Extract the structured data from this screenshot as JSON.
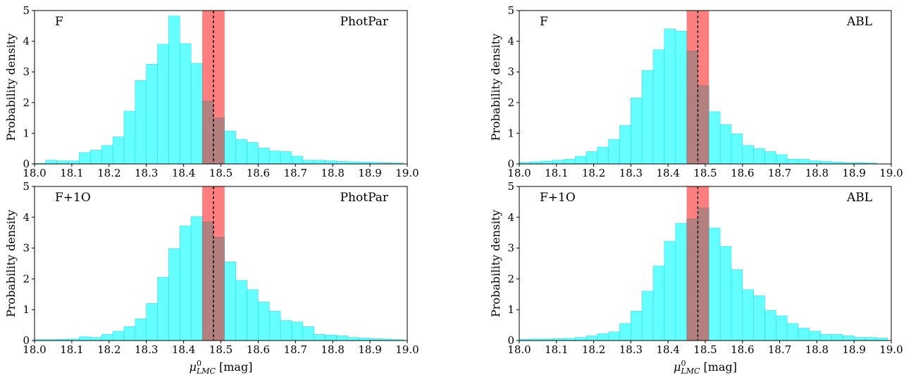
{
  "colors": {
    "hist": "#00ffff",
    "hist_edge": "#29e0f0",
    "band": "#ff0000",
    "line": "#000000"
  },
  "shared": {
    "ylabel": "Probability density",
    "xlabel_main": "μ",
    "xlabel_sup": "0",
    "xlabel_sub": "LMC",
    "xlabel_unit": " [mag]",
    "xticks": [
      "18.0",
      "18.1",
      "18.2",
      "18.3",
      "18.4",
      "18.5",
      "18.6",
      "18.7",
      "18.8",
      "18.9",
      "19.0"
    ],
    "yticks": [
      "0",
      "1",
      "2",
      "3",
      "4",
      "5"
    ]
  },
  "chart_data": [
    {
      "type": "bar",
      "panel": "top-left",
      "label_left": "F",
      "label_right": "PhotPar",
      "xlim": [
        18.0,
        19.0
      ],
      "ylim": [
        0,
        5
      ],
      "bin_start": 18.0,
      "bin_width": 0.03,
      "values": [
        0.02,
        0.12,
        0.1,
        0.1,
        0.37,
        0.45,
        0.6,
        0.88,
        1.72,
        2.72,
        3.25,
        3.9,
        4.82,
        3.92,
        3.28,
        2.05,
        1.5,
        1.07,
        0.8,
        0.7,
        0.52,
        0.42,
        0.4,
        0.25,
        0.12,
        0.12,
        0.1,
        0.08,
        0.07,
        0.06,
        0.05,
        0.04,
        0.03
      ],
      "band": [
        18.45,
        18.51
      ],
      "vline": 18.48,
      "grid": false
    },
    {
      "type": "bar",
      "panel": "top-right",
      "label_left": "F",
      "label_right": "ABL",
      "xlim": [
        18.0,
        19.0
      ],
      "ylim": [
        0,
        5
      ],
      "bin_start": 18.0,
      "bin_width": 0.03,
      "values": [
        0.05,
        0.07,
        0.09,
        0.12,
        0.15,
        0.25,
        0.4,
        0.55,
        0.8,
        1.25,
        2.15,
        3.05,
        3.72,
        4.4,
        4.33,
        3.68,
        2.55,
        1.7,
        1.28,
        0.98,
        0.6,
        0.5,
        0.4,
        0.3,
        0.15,
        0.15,
        0.1,
        0.08,
        0.06,
        0.04,
        0.04,
        0.03,
        0.0
      ],
      "band": [
        18.45,
        18.51
      ],
      "vline": 18.48,
      "grid": false
    },
    {
      "type": "bar",
      "panel": "bottom-left",
      "label_left": "F+1O",
      "label_right": "PhotPar",
      "xlim": [
        18.0,
        19.0
      ],
      "ylim": [
        0,
        5
      ],
      "bin_start": 18.0,
      "bin_width": 0.03,
      "values": [
        0.03,
        0.03,
        0.04,
        0.05,
        0.12,
        0.1,
        0.2,
        0.3,
        0.45,
        0.7,
        1.2,
        2.05,
        2.98,
        3.72,
        4.02,
        3.85,
        3.35,
        2.55,
        1.95,
        1.65,
        1.25,
        0.95,
        0.65,
        0.6,
        0.45,
        0.2,
        0.18,
        0.15,
        0.1,
        0.08,
        0.06,
        0.05,
        0.03
      ],
      "band": [
        18.45,
        18.51
      ],
      "vline": 18.48,
      "grid": false
    },
    {
      "type": "bar",
      "panel": "bottom-right",
      "label_left": "F+1O",
      "label_right": "ABL",
      "xlim": [
        18.0,
        19.0
      ],
      "ylim": [
        0,
        5
      ],
      "bin_start": 18.0,
      "bin_width": 0.03,
      "values": [
        0.04,
        0.05,
        0.05,
        0.06,
        0.07,
        0.1,
        0.15,
        0.22,
        0.28,
        0.55,
        0.95,
        1.6,
        2.42,
        3.22,
        3.8,
        3.95,
        4.3,
        3.65,
        3.05,
        2.3,
        1.65,
        1.45,
        0.98,
        0.8,
        0.55,
        0.4,
        0.3,
        0.2,
        0.2,
        0.15,
        0.1,
        0.1,
        0.08
      ],
      "band": [
        18.45,
        18.51
      ],
      "vline": 18.48,
      "grid": false
    }
  ]
}
